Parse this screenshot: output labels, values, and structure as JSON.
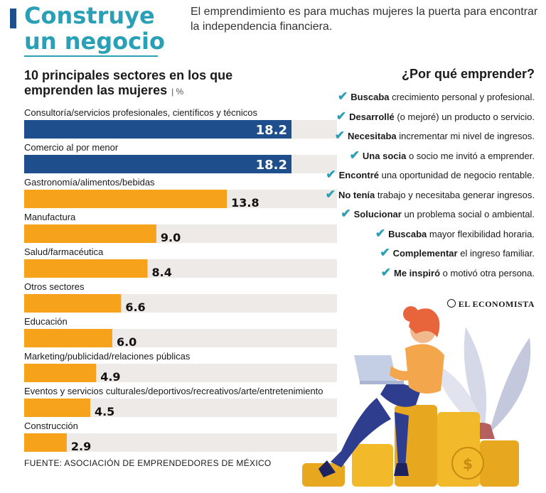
{
  "header": {
    "title_line1": "Construye",
    "title_line2": "un negocio",
    "subtitle": "El emprendimiento es para muchas mujeres la puerta para encontrar la independencia financiera."
  },
  "chart_heading": {
    "line1": "10 principales sectores en los que",
    "line2": "emprenden las mujeres",
    "unit": "| %"
  },
  "chart_data": {
    "type": "bar",
    "orientation": "horizontal",
    "categories": [
      "Consultoría/servicios profesionales, científicos y técnicos",
      "Comercio al por menor",
      "Gastronomía/alimentos/bebidas",
      "Manufactura",
      "Salud/farmacéutica",
      "Otros sectores",
      "Educación",
      "Marketing/publicidad/relaciones públicas",
      "Eventos y servicios culturales/deportivos/recreativos/arte/entretenimiento",
      "Construcción"
    ],
    "values": [
      18.2,
      18.2,
      13.8,
      9.0,
      8.4,
      6.6,
      6.0,
      4.9,
      4.5,
      2.9
    ],
    "value_labels": [
      "18.2",
      "18.2",
      "13.8",
      "9.0",
      "8.4",
      "6.6",
      "6.0",
      "4.9",
      "4.5",
      "2.9"
    ],
    "highlight_count": 2,
    "colors": {
      "highlight": "#1f4e8c",
      "normal": "#f7a21b",
      "track": "#eeeae7"
    },
    "xlim": [
      0,
      20
    ]
  },
  "source": "FUENTE: ASOCIACIÓN DE EMPRENDEDORES DE MÉXICO",
  "reasons": {
    "title": "¿Por qué emprender?",
    "check_icon": "✔",
    "items": [
      {
        "keyword": "Buscaba",
        "rest": "crecimiento personal y profesional."
      },
      {
        "keyword": "Desarrollé",
        "rest": "(o mejoré) un producto o servicio."
      },
      {
        "keyword": "Necesitaba",
        "rest": "incrementar mi nivel de ingresos."
      },
      {
        "keyword": "Una socia",
        "rest": "o socio me invitó a emprender."
      },
      {
        "keyword": "Encontré",
        "rest": "una oportunidad de negocio rentable."
      },
      {
        "keyword": "No tenía",
        "rest": "trabajo y necesitaba generar ingresos."
      },
      {
        "keyword": "Solucionar",
        "rest": "un problema social o ambiental."
      },
      {
        "keyword": "Buscaba",
        "rest": "mayor flexibilidad horaria."
      },
      {
        "keyword": "Complementar",
        "rest": "el ingreso familiar."
      },
      {
        "keyword": "Me inspiró",
        "rest": "o motivó otra persona."
      }
    ]
  },
  "brand": "EL ECONOMISTA"
}
